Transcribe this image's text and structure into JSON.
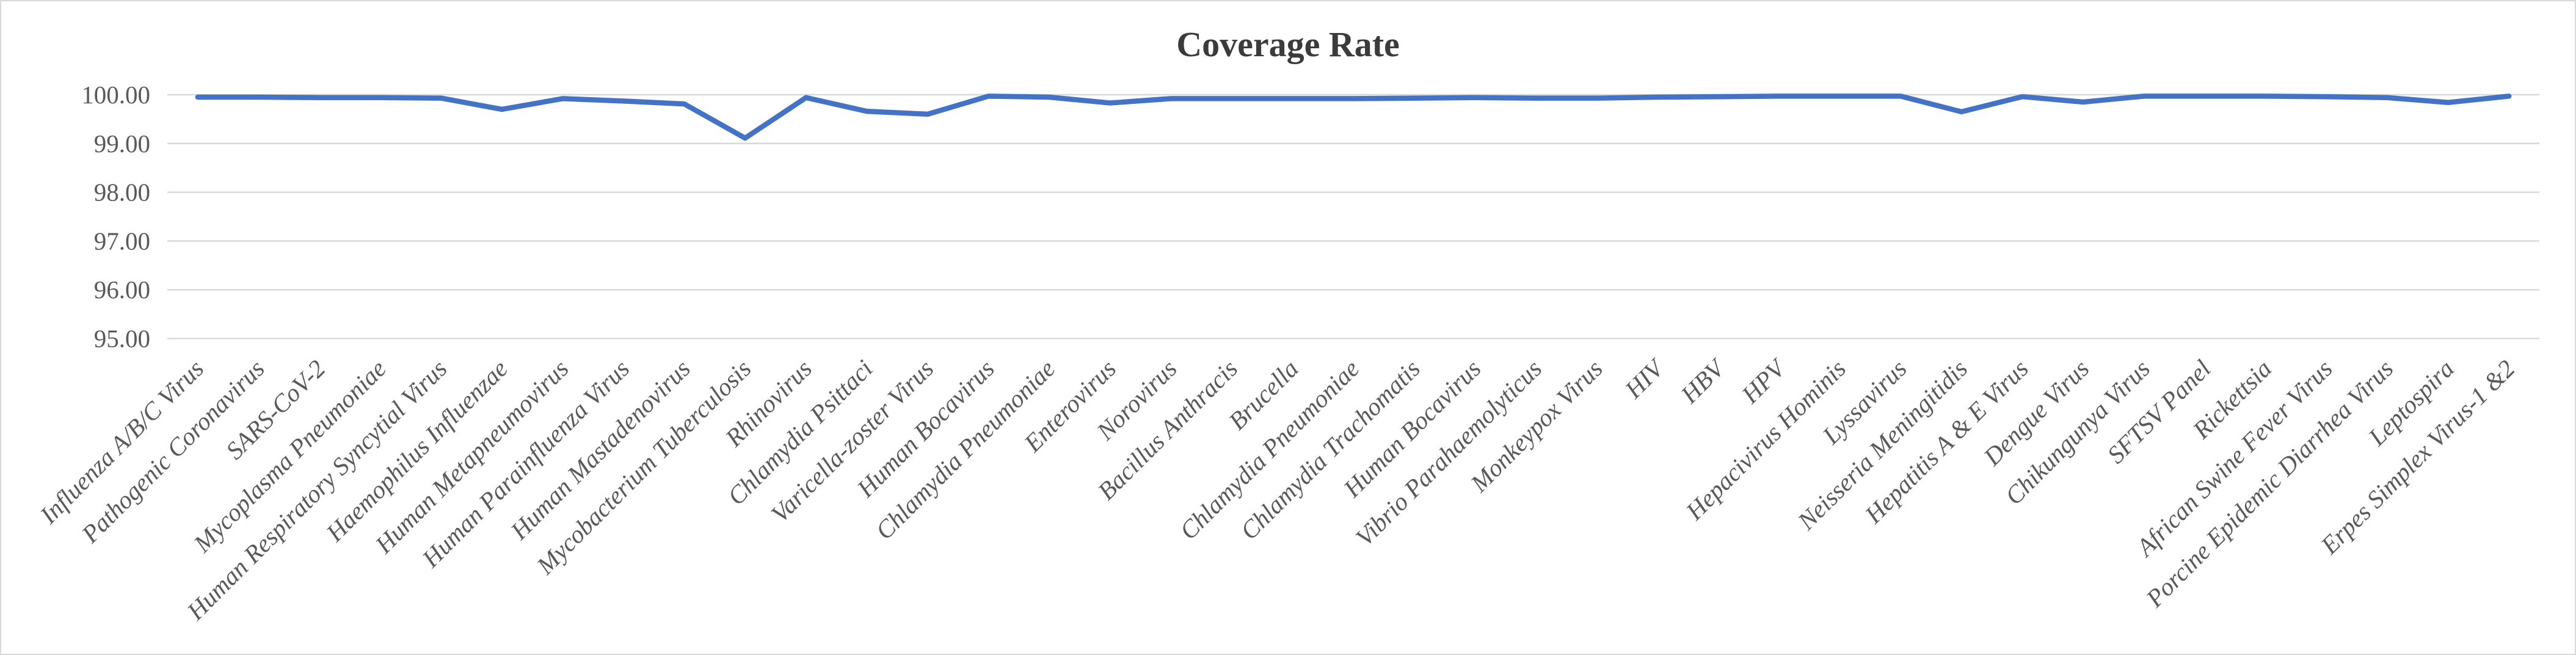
{
  "chart_data": {
    "type": "line",
    "title": "Coverage Rate",
    "categories": [
      "Influenza A/B/C Virus",
      "Pathogenic Coronavirus",
      "SARS-CoV-2",
      "Mycoplasma Pneumoniae",
      "Human Respiratory Syncytial Virus",
      "Haemophilus Influenzae",
      "Human Metapneumovirus",
      "Human Parainfluenza Virus",
      "Human Mastadenovirus",
      "Mycobacterium Tuberculosis",
      "Rhinovirus",
      "Chlamydia Psittaci",
      "Varicella-zoster Virus",
      "Human Bocavirus",
      "Chlamydia Pneumoniae",
      "Enterovirus",
      "Norovirus",
      "Bacillus Anthracis",
      "Brucella",
      "Chlamydia Pneumoniae",
      "Chlamydia Trachomatis",
      "Human Bocavirus",
      "Vibrio Parahaemolyticus",
      "Monkeypox Virus",
      "HIV",
      "HBV",
      "HPV",
      "Hepacivirus Hominis",
      "Lyssavirus",
      "Neisseria Meningitidis",
      "Hepatitis A & E Virus",
      "Dengue Virus",
      "Chikungunya Virus",
      "SFTSV Panel",
      "Rickettsia",
      "African Swine Fever Virus",
      "Porcine Epidemic Diarrhea Virus",
      "Leptospira",
      "Erpes Simplex Virus-1 &2"
    ],
    "series": [
      {
        "name": "Coverage Rate",
        "values": [
          99.95,
          99.95,
          99.94,
          99.94,
          99.93,
          99.7,
          99.92,
          99.87,
          99.81,
          99.11,
          99.94,
          99.66,
          99.6,
          99.97,
          99.95,
          99.83,
          99.92,
          99.92,
          99.92,
          99.92,
          99.93,
          99.94,
          99.93,
          99.93,
          99.95,
          99.96,
          99.97,
          99.97,
          99.97,
          99.65,
          99.96,
          99.85,
          99.97,
          99.97,
          99.97,
          99.96,
          99.94,
          99.84,
          99.97
        ]
      }
    ],
    "xlabel": "",
    "ylabel": "",
    "ylim": [
      95,
      100
    ],
    "y_tick_step": 1,
    "y_ticks": [
      "100.00",
      "99.00",
      "98.00",
      "97.00",
      "96.00",
      "95.00"
    ],
    "grid": "horizontal",
    "legend_position": "none",
    "colors": {
      "line": "#4472C4",
      "gridline": "#D9D9D9",
      "axis_text": "#595959",
      "title_text": "#3B3B3B",
      "background": "#FFFFFF",
      "border": "#D9D9D9"
    }
  }
}
